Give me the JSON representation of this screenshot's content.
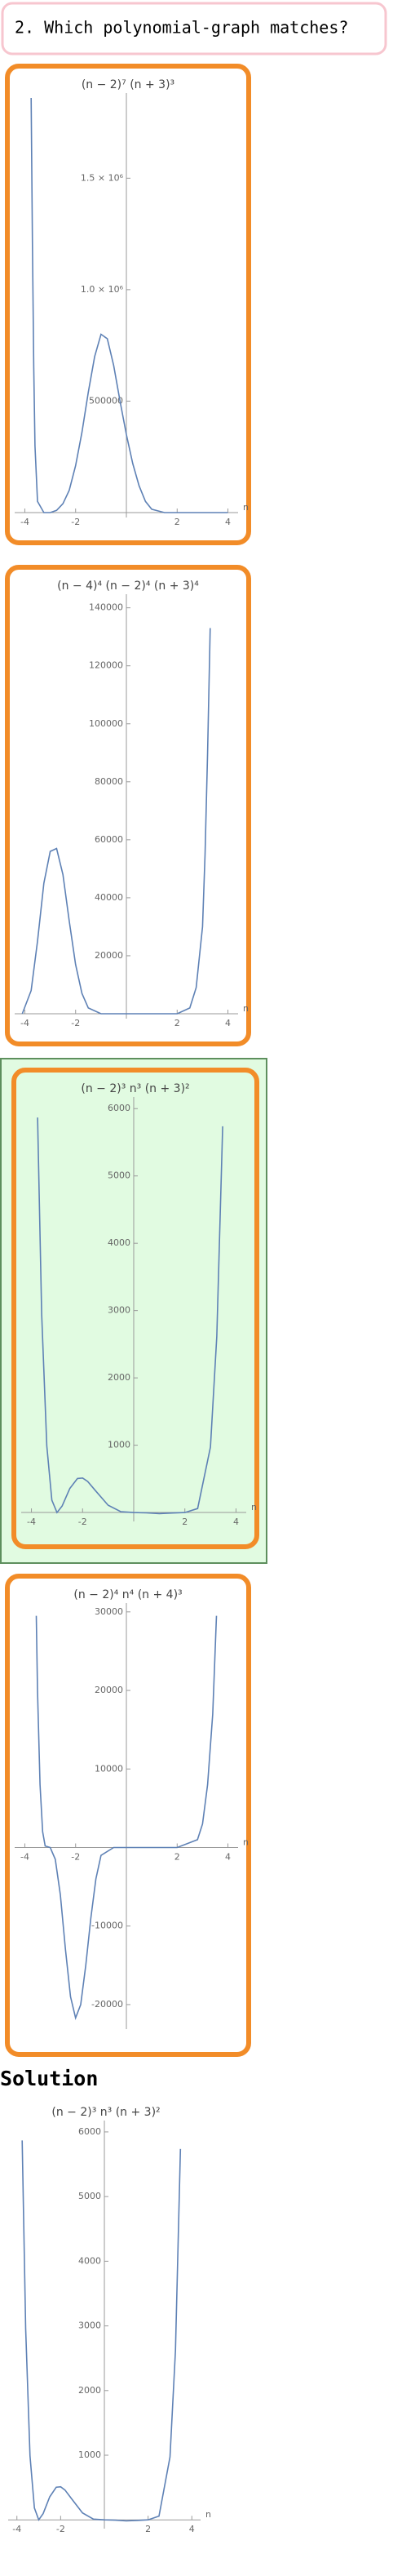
{
  "question": "2. Which polynomial-graph matches?",
  "solution_heading": "Solution",
  "chart_data": [
    {
      "type": "line",
      "title": "(n − 2)⁷ (n + 3)³",
      "x_label": "n",
      "color": "#5e81b5",
      "x": [
        -3.75,
        -3.7,
        -3.65,
        -3.6,
        -3.5,
        -3.25,
        -3,
        -2.75,
        -2.5,
        -2.25,
        -2,
        -1.75,
        -1.5,
        -1.25,
        -1,
        -0.75,
        -0.5,
        -0.25,
        0,
        0.25,
        0.5,
        0.75,
        1,
        1.5,
        2,
        3,
        4
      ],
      "values": [
        1860000,
        1200000,
        650000,
        300000,
        50000,
        0,
        0,
        10000,
        40000,
        100000,
        210000,
        360000,
        540000,
        700000,
        800000,
        780000,
        660000,
        500000,
        350000,
        220000,
        120000,
        50000,
        15000,
        0,
        0,
        0,
        0
      ],
      "xlim": [
        -4.4,
        4.4
      ],
      "ylim": [
        0,
        1860000
      ],
      "xticks": [
        -4,
        -2,
        2,
        4
      ],
      "yticks": [
        500000,
        {
          "value": 1000000,
          "label": "1.0 × 10⁶"
        },
        {
          "value": 1500000,
          "label": "1.5 × 10⁶"
        }
      ]
    },
    {
      "type": "line",
      "title": "(n − 4)⁴ (n − 2)⁴ (n + 3)⁴",
      "x_label": "n",
      "color": "#5e81b5",
      "x": [
        -4.1,
        -3.75,
        -3.5,
        -3.25,
        -3,
        -2.75,
        -2.5,
        -2.25,
        -2,
        -1.75,
        -1.5,
        -1,
        0,
        1,
        2,
        2.5,
        2.75,
        3,
        3.1,
        3.2,
        3.3
      ],
      "values": [
        0,
        8000,
        25000,
        45000,
        56000,
        57000,
        48000,
        32000,
        17000,
        7000,
        2000,
        0,
        0,
        0,
        0,
        2000,
        9000,
        30000,
        55000,
        90000,
        133000
      ],
      "xlim": [
        -4.4,
        4.4
      ],
      "ylim": [
        0,
        143000
      ],
      "xticks": [
        -4,
        -2,
        2,
        4
      ],
      "yticks": [
        20000,
        40000,
        60000,
        80000,
        100000,
        120000,
        140000
      ]
    },
    {
      "type": "line",
      "title": "(n − 2)³ n³ (n + 3)²",
      "x_label": "n",
      "color": "#5e81b5",
      "x": [
        -3.76,
        -3.6,
        -3.4,
        -3.2,
        -3,
        -2.8,
        -2.5,
        -2.2,
        -2,
        -1.8,
        -1.5,
        -1,
        -0.5,
        0,
        0.5,
        1,
        1.5,
        2,
        2.5,
        3,
        3.25,
        3.48
      ],
      "values": [
        5868,
        2950,
        990,
        184,
        0,
        97,
        356,
        505,
        512,
        461,
        326,
        108,
        12,
        0,
        -5,
        -16,
        -8,
        0,
        59,
        972,
        2619,
        5737
      ],
      "xlim": [
        -4.4,
        4.4
      ],
      "ylim": [
        -60,
        6100
      ],
      "xticks": [
        -4,
        -2,
        2,
        4
      ],
      "yticks": [
        1000,
        2000,
        3000,
        4000,
        5000,
        6000
      ]
    },
    {
      "type": "line",
      "title": "(n − 2)⁴ n⁴ (n + 4)³",
      "x_label": "n",
      "color": "#5e81b5",
      "x": [
        -3.55,
        -3.5,
        -3.4,
        -3.3,
        -3.2,
        -3,
        -2.8,
        -2.6,
        -2.4,
        -2.2,
        -2,
        -1.8,
        -1.6,
        -1.4,
        -1.2,
        -1,
        -0.5,
        0,
        1,
        2,
        2.8,
        3,
        3.2,
        3.4,
        3.55
      ],
      "values": [
        29500,
        20000,
        8000,
        2000,
        200,
        0,
        -1500,
        -6000,
        -13000,
        -19000,
        -21700,
        -20000,
        -15000,
        -9000,
        -4000,
        -1000,
        0,
        0,
        0,
        0,
        1000,
        3000,
        8000,
        17000,
        29500
      ],
      "xlim": [
        -4.4,
        4.4
      ],
      "ylim": [
        -22500,
        30500
      ],
      "xticks": [
        -4,
        -2,
        2,
        4
      ],
      "yticks": [
        -20000,
        -10000,
        10000,
        20000,
        30000
      ]
    },
    {
      "type": "line",
      "title": "(n − 2)³ n³ (n + 3)²",
      "x_label": "n",
      "color": "#5e81b5",
      "x": [
        -3.76,
        -3.6,
        -3.4,
        -3.2,
        -3,
        -2.8,
        -2.5,
        -2.2,
        -2,
        -1.8,
        -1.5,
        -1,
        -0.5,
        0,
        0.5,
        1,
        1.5,
        2,
        2.5,
        3,
        3.25,
        3.48
      ],
      "values": [
        5868,
        2950,
        990,
        184,
        0,
        97,
        356,
        505,
        512,
        461,
        326,
        108,
        12,
        0,
        -5,
        -16,
        -8,
        0,
        59,
        972,
        2619,
        5737
      ],
      "xlim": [
        -4.4,
        4.4
      ],
      "ylim": [
        -60,
        6100
      ],
      "xticks": [
        -4,
        -2,
        2,
        4
      ],
      "yticks": [
        1000,
        2000,
        3000,
        4000,
        5000,
        6000
      ]
    }
  ]
}
